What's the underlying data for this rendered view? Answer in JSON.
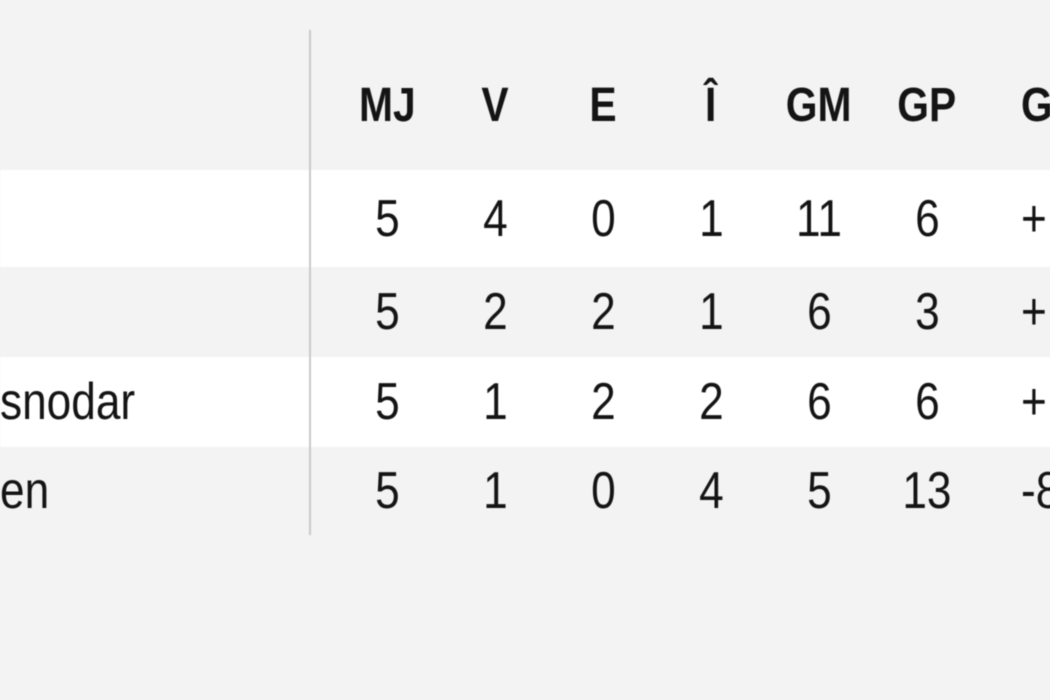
{
  "colors": {
    "page_background": "#f3f3f3",
    "row_white": "#ffffff",
    "divider": "#c9c9c9",
    "text": "#141414"
  },
  "standings_table": {
    "column_headers": {
      "team": "",
      "mj": "MJ",
      "v": "V",
      "e": "E",
      "i": "Î",
      "gm": "GM",
      "gp": "GP",
      "g": "G"
    },
    "rows": [
      {
        "team": "",
        "mj": "5",
        "v": "4",
        "e": "0",
        "i": "1",
        "gm": "11",
        "gp": "6",
        "g": "+"
      },
      {
        "team": "",
        "mj": "5",
        "v": "2",
        "e": "2",
        "i": "1",
        "gm": "6",
        "gp": "3",
        "g": "+"
      },
      {
        "team": "snodar",
        "mj": "5",
        "v": "1",
        "e": "2",
        "i": "2",
        "gm": "6",
        "gp": "6",
        "g": "+"
      },
      {
        "team": "en",
        "mj": "5",
        "v": "1",
        "e": "0",
        "i": "4",
        "gm": "5",
        "gp": "13",
        "g": "-8"
      }
    ]
  }
}
